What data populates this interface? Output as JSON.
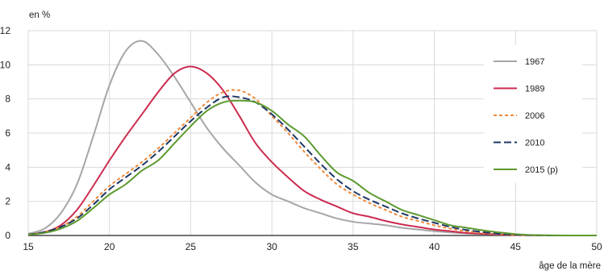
{
  "chart_data": {
    "type": "line",
    "title": "",
    "xlabel": "âge de la mère",
    "ylabel": "en %",
    "xlim": [
      15,
      50
    ],
    "ylim": [
      0,
      12
    ],
    "xticks": [
      15,
      20,
      25,
      30,
      35,
      40,
      45,
      50
    ],
    "yticks": [
      0,
      2,
      4,
      6,
      8,
      10,
      12
    ],
    "grid": true,
    "legend_position": "right",
    "series": [
      {
        "name": "1967",
        "color": "#a6a6a6",
        "dash": "solid",
        "x": [
          15,
          16,
          17,
          18,
          19,
          20,
          21,
          22,
          23,
          24,
          25,
          26,
          27,
          28,
          29,
          30,
          31,
          32,
          33,
          34,
          35,
          36,
          37,
          38,
          39,
          40,
          41,
          42,
          43,
          44,
          45,
          46,
          47,
          48,
          49,
          50
        ],
        "values": [
          0.1,
          0.4,
          1.3,
          3.0,
          5.8,
          8.8,
          10.8,
          11.4,
          10.6,
          9.3,
          7.8,
          6.3,
          5.1,
          4.1,
          3.1,
          2.4,
          2.0,
          1.6,
          1.3,
          1.0,
          0.8,
          0.7,
          0.6,
          0.45,
          0.35,
          0.25,
          0.18,
          0.12,
          0.08,
          0.05,
          0.03,
          0.01,
          0.0,
          0.0,
          0.0,
          0.0
        ]
      },
      {
        "name": "1989",
        "color": "#cc2b4f",
        "dash": "solid",
        "x": [
          15,
          16,
          17,
          18,
          19,
          20,
          21,
          22,
          23,
          24,
          25,
          26,
          27,
          28,
          29,
          30,
          31,
          32,
          33,
          34,
          35,
          36,
          37,
          38,
          39,
          40,
          41,
          42,
          43,
          44,
          45,
          46,
          47,
          48,
          49,
          50
        ],
        "values": [
          0.05,
          0.2,
          0.6,
          1.5,
          2.9,
          4.4,
          5.8,
          7.1,
          8.4,
          9.5,
          9.9,
          9.5,
          8.5,
          7.0,
          5.4,
          4.3,
          3.4,
          2.6,
          2.1,
          1.7,
          1.3,
          1.1,
          0.85,
          0.65,
          0.5,
          0.35,
          0.25,
          0.15,
          0.1,
          0.06,
          0.03,
          0.01,
          0.0,
          0.0,
          0.0,
          0.0
        ]
      },
      {
        "name": "2006",
        "color": "#f08a3c",
        "dash": "dotted",
        "x": [
          15,
          16,
          17,
          18,
          19,
          20,
          21,
          22,
          23,
          24,
          25,
          26,
          27,
          28,
          29,
          30,
          31,
          32,
          33,
          34,
          35,
          36,
          37,
          38,
          39,
          40,
          41,
          42,
          43,
          44,
          45,
          46,
          47,
          48,
          49,
          50
        ],
        "values": [
          0.05,
          0.2,
          0.5,
          1.1,
          2.0,
          2.9,
          3.6,
          4.3,
          5.1,
          6.0,
          6.9,
          7.8,
          8.4,
          8.5,
          8.0,
          7.0,
          6.0,
          4.9,
          3.9,
          3.0,
          2.4,
          1.9,
          1.5,
          1.1,
          0.85,
          0.6,
          0.4,
          0.25,
          0.15,
          0.08,
          0.04,
          0.02,
          0.0,
          0.0,
          0.0,
          0.0
        ]
      },
      {
        "name": "2010",
        "color": "#1f3864",
        "dash": "dashed",
        "x": [
          15,
          16,
          17,
          18,
          19,
          20,
          21,
          22,
          23,
          24,
          25,
          26,
          27,
          28,
          29,
          30,
          31,
          32,
          33,
          34,
          35,
          36,
          37,
          38,
          39,
          40,
          41,
          42,
          43,
          44,
          45,
          46,
          47,
          48,
          49,
          50
        ],
        "values": [
          0.05,
          0.2,
          0.5,
          1.0,
          1.8,
          2.7,
          3.4,
          4.1,
          4.9,
          5.8,
          6.7,
          7.5,
          8.1,
          8.1,
          7.8,
          7.1,
          6.2,
          5.2,
          4.2,
          3.3,
          2.6,
          2.1,
          1.7,
          1.3,
          1.0,
          0.75,
          0.5,
          0.32,
          0.2,
          0.1,
          0.05,
          0.02,
          0.0,
          0.0,
          0.0,
          0.0
        ]
      },
      {
        "name": "2015 (p)",
        "color": "#5c9a2f",
        "dash": "solid",
        "x": [
          15,
          16,
          17,
          18,
          19,
          20,
          21,
          22,
          23,
          24,
          25,
          26,
          27,
          28,
          29,
          30,
          31,
          32,
          33,
          34,
          35,
          36,
          37,
          38,
          39,
          40,
          41,
          42,
          43,
          44,
          45,
          46,
          47,
          48,
          49,
          50
        ],
        "values": [
          0.05,
          0.15,
          0.4,
          0.85,
          1.6,
          2.4,
          3.0,
          3.8,
          4.4,
          5.4,
          6.4,
          7.3,
          7.8,
          7.9,
          7.8,
          7.3,
          6.5,
          5.8,
          4.7,
          3.7,
          3.2,
          2.5,
          2.0,
          1.5,
          1.2,
          0.9,
          0.6,
          0.45,
          0.3,
          0.18,
          0.08,
          0.03,
          0.01,
          0.0,
          0.0,
          0.0
        ]
      }
    ]
  }
}
